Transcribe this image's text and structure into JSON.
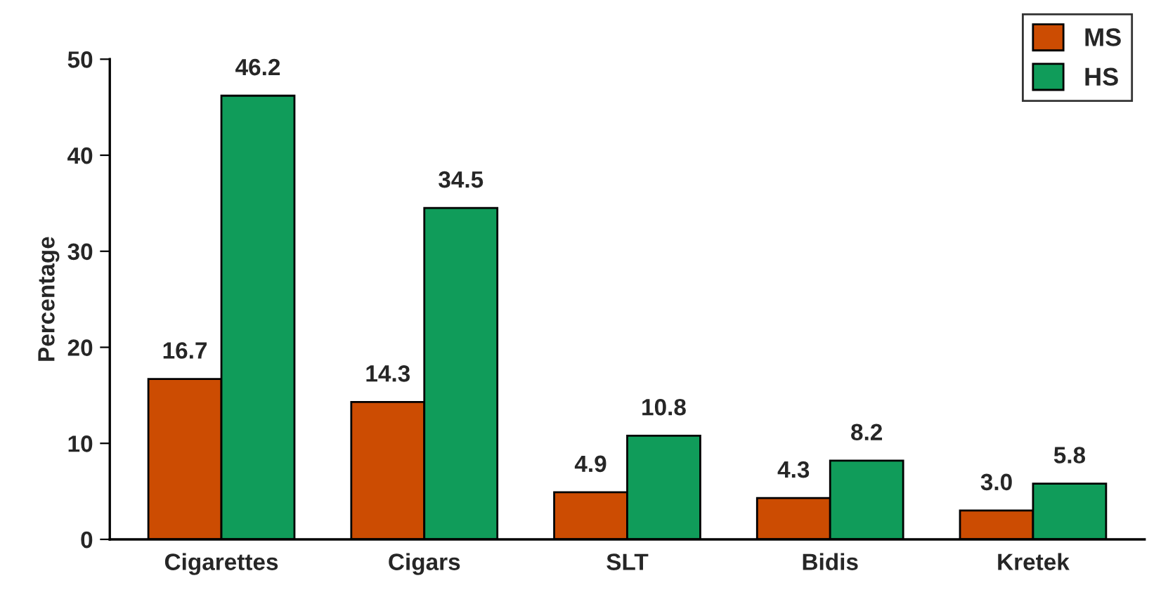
{
  "chart_data": {
    "type": "bar",
    "ylabel": "Percentage",
    "categories": [
      "Cigarettes",
      "Cigars",
      "SLT",
      "Bidis",
      "Kretek"
    ],
    "series": [
      {
        "name": "MS",
        "color": "#cc4c02",
        "values": [
          16.7,
          14.3,
          4.9,
          4.3,
          3.0
        ],
        "value_labels": [
          "16.7",
          "14.3",
          "4.9",
          "4.3",
          "3.0"
        ]
      },
      {
        "name": "HS",
        "color": "#109c5a",
        "values": [
          46.2,
          34.5,
          10.8,
          8.2,
          5.8
        ],
        "value_labels": [
          "46.2",
          "34.5",
          "10.8",
          "8.2",
          "5.8"
        ]
      }
    ],
    "ylim": [
      0,
      50
    ],
    "yticks": [
      0,
      10,
      20,
      30,
      40,
      50
    ],
    "grid": false,
    "legend": "top right"
  }
}
